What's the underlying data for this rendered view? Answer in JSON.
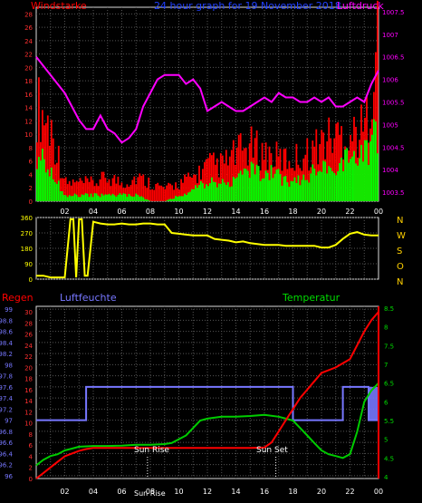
{
  "header": {
    "wind_label": "Windstarke",
    "title": "24 hour graph for 19 November 2018",
    "pressure_label": "Luftdruck",
    "rain_label": "Regen",
    "humidity_label": "Luftfeuchte",
    "temperature_label": "Temperatur",
    "sunrise_label": "Sun Rise",
    "sunset_label": "Sun Set",
    "sunrise_time": "Sun Rise"
  },
  "colors": {
    "wind_avg": "#00ff00",
    "wind_gust": "#ff0000",
    "pressure": "#ff00ff",
    "direction": "#ffff00",
    "humidity": "#7777ff",
    "temperature": "#00cc00",
    "rain": "#ff0000",
    "grid": "#555555"
  },
  "chart_data": [
    {
      "type": "bar",
      "name": "wind-and-pressure",
      "x_ticks": [
        "02",
        "04",
        "06",
        "08",
        "10",
        "12",
        "14",
        "16",
        "18",
        "20",
        "22",
        "00"
      ],
      "left_axis": {
        "ticks": [
          "0",
          "2",
          "4",
          "6",
          "8",
          "10",
          "12",
          "14",
          "16",
          "18",
          "20",
          "22",
          "24",
          "26",
          "28"
        ],
        "ylim": [
          0,
          29
        ]
      },
      "right_axis": {
        "ticks": [
          "1003.5",
          "1004",
          "1004.5",
          "1005",
          "1005.5",
          "1006",
          "1006.5",
          "1007",
          "1007.5"
        ],
        "ylim": [
          1003.3,
          1007.6
        ]
      },
      "series": [
        {
          "name": "Windstarke",
          "axis": "left",
          "type": "bar",
          "hours": [
            0,
            1,
            2,
            3,
            4,
            5,
            6,
            7,
            8,
            9,
            10,
            11,
            12,
            13,
            14,
            15,
            16,
            17,
            18,
            19,
            20,
            21,
            22,
            23,
            24
          ],
          "avg": [
            8,
            5,
            1,
            1,
            1,
            1,
            1,
            1,
            0,
            0,
            1,
            2,
            3,
            3,
            4,
            5,
            5,
            4,
            3,
            4,
            6,
            6,
            7,
            8,
            12
          ],
          "gust": [
            16,
            12,
            3,
            3,
            3,
            4,
            3,
            4,
            3,
            2,
            3,
            4,
            6,
            6,
            8,
            9,
            8,
            7,
            7,
            8,
            10,
            11,
            11,
            12,
            28
          ]
        },
        {
          "name": "Luftdruck",
          "axis": "right",
          "type": "line",
          "x": [
            0,
            0.5,
            1,
            1.5,
            2,
            2.5,
            3,
            3.5,
            4,
            4.5,
            5,
            5.5,
            6,
            6.5,
            7,
            7.5,
            8,
            8.5,
            9,
            9.5,
            10,
            10.5,
            11,
            11.5,
            12,
            12.5,
            13,
            13.5,
            14,
            14.5,
            15,
            15.5,
            16,
            16.5,
            17,
            17.5,
            18,
            18.5,
            19,
            19.5,
            20,
            20.5,
            21,
            21.5,
            22,
            22.5,
            23,
            23.5,
            24
          ],
          "y": [
            1006.5,
            1006.3,
            1006.1,
            1005.9,
            1005.7,
            1005.4,
            1005.1,
            1004.9,
            1004.9,
            1005.2,
            1004.9,
            1004.8,
            1004.6,
            1004.7,
            1004.9,
            1005.4,
            1005.7,
            1006.0,
            1006.1,
            1006.1,
            1006.1,
            1005.9,
            1006.0,
            1005.8,
            1005.3,
            1005.4,
            1005.5,
            1005.4,
            1005.3,
            1005.3,
            1005.4,
            1005.5,
            1005.6,
            1005.5,
            1005.7,
            1005.6,
            1005.6,
            1005.5,
            1005.5,
            1005.6,
            1005.5,
            1005.6,
            1005.4,
            1005.4,
            1005.5,
            1005.6,
            1005.5,
            1005.9,
            1006.2
          ]
        }
      ]
    },
    {
      "type": "line",
      "name": "wind-direction",
      "y_ticks": [
        "0",
        "90",
        "180",
        "270",
        "360"
      ],
      "ylim": [
        0,
        360
      ],
      "direction_letters": [
        "N",
        "W",
        "S",
        "O",
        "N"
      ],
      "x": [
        0,
        0.5,
        1,
        1.5,
        2,
        2.4,
        2.6,
        2.8,
        3,
        3.2,
        3.4,
        3.6,
        4,
        4.5,
        5,
        5.5,
        6,
        6.5,
        7,
        7.5,
        8,
        8.5,
        9,
        9.5,
        10,
        10.5,
        11,
        11.5,
        12,
        12.5,
        13,
        13.5,
        14,
        14.5,
        15,
        15.5,
        16,
        16.5,
        17,
        17.5,
        18,
        18.5,
        19,
        19.5,
        20,
        20.5,
        21,
        21.5,
        22,
        22.5,
        23,
        23.5,
        24
      ],
      "y": [
        20,
        20,
        10,
        10,
        10,
        350,
        350,
        10,
        350,
        350,
        20,
        20,
        335,
        325,
        320,
        320,
        325,
        320,
        320,
        325,
        325,
        320,
        320,
        270,
        265,
        260,
        255,
        255,
        255,
        235,
        230,
        225,
        215,
        220,
        210,
        205,
        200,
        200,
        200,
        195,
        195,
        195,
        195,
        195,
        185,
        185,
        200,
        235,
        265,
        275,
        260,
        255,
        255
      ]
    },
    {
      "type": "line",
      "name": "temperature-humidity-rain",
      "left_axis_humidity": {
        "ticks": [
          "96",
          "96.2",
          "96.4",
          "96.6",
          "96.8",
          "97",
          "97.2",
          "97.4",
          "97.6",
          "97.8",
          "98",
          "98.2",
          "98.4",
          "98.6",
          "98.8",
          "99"
        ],
        "ylim": [
          95.95,
          99.05
        ]
      },
      "left_axis_rain": {
        "ticks": [
          "0",
          "2",
          "4",
          "6",
          "8",
          "10",
          "12",
          "14",
          "16",
          "18",
          "20",
          "22",
          "24",
          "26",
          "28",
          "30"
        ],
        "ylim": [
          0,
          31
        ]
      },
      "right_axis": {
        "ticks": [
          "4",
          "4.5",
          "5",
          "5.5",
          "6",
          "6.5",
          "7",
          "7.5",
          "8",
          "8.5"
        ],
        "ylim": [
          3.95,
          8.55
        ]
      },
      "sunrise_hour": 7.8,
      "sunset_hour": 16.8,
      "series": [
        {
          "name": "Luftfeuchte",
          "axis": "humidity",
          "x": [
            0,
            3.5,
            3.5,
            18,
            18,
            21.5,
            21.5,
            23.3,
            23.3,
            24
          ],
          "y": [
            97.0,
            97.0,
            97.6,
            97.6,
            97.0,
            97.0,
            97.6,
            97.6,
            97.0,
            97.0
          ]
        },
        {
          "name": "Temperatur",
          "axis": "temperature",
          "x": [
            0,
            0.5,
            1,
            1.5,
            2,
            2.5,
            3,
            4,
            5,
            6,
            7,
            8,
            9,
            9.5,
            10,
            10.5,
            11,
            11.5,
            12,
            13,
            14,
            15,
            16,
            17,
            17.5,
            18,
            18.5,
            19,
            19.5,
            20,
            20.5,
            21,
            21.5,
            22,
            22.5,
            23,
            23.5,
            24
          ],
          "y": [
            4.3,
            4.45,
            4.55,
            4.6,
            4.7,
            4.75,
            4.8,
            4.82,
            4.82,
            4.83,
            4.85,
            4.85,
            4.87,
            4.9,
            5.0,
            5.1,
            5.3,
            5.5,
            5.55,
            5.6,
            5.6,
            5.62,
            5.65,
            5.6,
            5.55,
            5.5,
            5.3,
            5.1,
            4.9,
            4.7,
            4.6,
            4.55,
            4.5,
            4.6,
            5.2,
            6.0,
            6.3,
            6.5
          ]
        },
        {
          "name": "Regen",
          "axis": "rain",
          "x": [
            0,
            0.5,
            1,
            1.5,
            2,
            2.5,
            3,
            3.5,
            4,
            5,
            6,
            7,
            8,
            9,
            10,
            11,
            12,
            13,
            14,
            15,
            16,
            16.5,
            17,
            17.5,
            18,
            18.5,
            19,
            19.5,
            20,
            21,
            22,
            22.5,
            23,
            23.5,
            24
          ],
          "y": [
            0,
            1,
            2,
            3,
            4,
            4.5,
            5,
            5.3,
            5.5,
            5.5,
            5.5,
            5.5,
            5.5,
            5.5,
            5.5,
            5.5,
            5.5,
            5.5,
            5.5,
            5.5,
            5.6,
            6.5,
            8.5,
            10.5,
            12.5,
            14.5,
            16,
            17.5,
            19,
            20,
            21.5,
            24,
            26.5,
            28.5,
            30
          ]
        }
      ]
    }
  ]
}
